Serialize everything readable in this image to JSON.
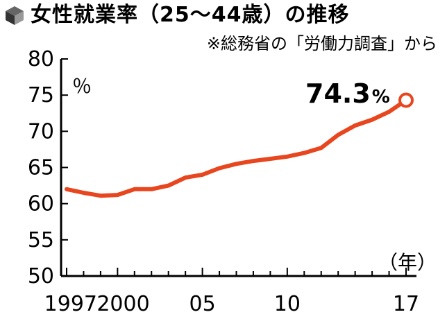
{
  "header": {
    "title": "女性就業率（25～44歳）の推移",
    "source": "※総務省の「労働力調査」から",
    "icon": "cube-icon"
  },
  "chart_data": {
    "type": "line",
    "x": [
      1997,
      1998,
      1999,
      2000,
      2001,
      2002,
      2003,
      2004,
      2005,
      2006,
      2007,
      2008,
      2009,
      2010,
      2011,
      2012,
      2013,
      2014,
      2015,
      2016,
      2017
    ],
    "series": [
      {
        "values": [
          62.0,
          61.5,
          61.1,
          61.2,
          62.0,
          62.0,
          62.5,
          63.6,
          64.0,
          64.9,
          65.5,
          65.9,
          66.2,
          66.5,
          67.0,
          67.7,
          69.5,
          70.8,
          71.6,
          72.7,
          74.3
        ],
        "color": "#e8461e"
      }
    ],
    "x_tick_labels": [
      {
        "x": 1997,
        "label": "1997"
      },
      {
        "x": 2000,
        "label": "2000"
      },
      {
        "x": 2005,
        "label": "05"
      },
      {
        "x": 2010,
        "label": "10"
      },
      {
        "x": 2017,
        "label": "17"
      }
    ],
    "y_ticks": [
      50,
      55,
      60,
      65,
      70,
      75,
      80
    ],
    "ylim": [
      50,
      80
    ],
    "xlim": [
      1997,
      2017
    ],
    "y_unit": "％",
    "x_unit": "（年）",
    "end_label": "74.3",
    "end_label_unit": "%",
    "grid": false
  }
}
